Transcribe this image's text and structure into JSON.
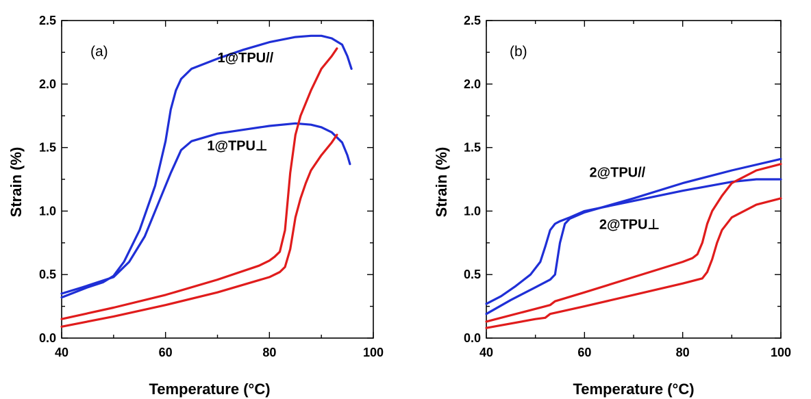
{
  "chart_data": [
    {
      "type": "line",
      "panel_label": "(a)",
      "xlabel": "Temperature (°C)",
      "ylabel": "Strain (%)",
      "xlim": [
        40,
        100
      ],
      "ylim": [
        0,
        2.5
      ],
      "x_ticks": [
        "40",
        "60",
        "80",
        "100"
      ],
      "y_ticks": [
        "0.0",
        "0.5",
        "1.0",
        "1.5",
        "2.0",
        "2.5"
      ],
      "grid": false,
      "annotations": [
        {
          "text": "1@TPU//",
          "x": 70,
          "y": 2.17
        },
        {
          "text": "1@TPU⊥",
          "x": 68,
          "y": 1.48
        }
      ],
      "series": [
        {
          "color": "#1f2fd6",
          "x": [
            40,
            45,
            48,
            50,
            52,
            55,
            58,
            60,
            61,
            62,
            63,
            65,
            70,
            75,
            80,
            85,
            88,
            90,
            92,
            94,
            95,
            95.8
          ],
          "y": [
            0.32,
            0.4,
            0.44,
            0.49,
            0.6,
            0.85,
            1.2,
            1.55,
            1.8,
            1.95,
            2.04,
            2.12,
            2.2,
            2.27,
            2.33,
            2.37,
            2.38,
            2.38,
            2.36,
            2.31,
            2.22,
            2.12
          ]
        },
        {
          "color": "#1f2fd6",
          "x": [
            40,
            44,
            47,
            50,
            53,
            56,
            57,
            59,
            61,
            63,
            65,
            70,
            75,
            80,
            85,
            88,
            90,
            92,
            94,
            95,
            95.5
          ],
          "y": [
            0.35,
            0.4,
            0.44,
            0.48,
            0.6,
            0.8,
            0.9,
            1.1,
            1.3,
            1.48,
            1.55,
            1.61,
            1.64,
            1.67,
            1.69,
            1.68,
            1.66,
            1.62,
            1.54,
            1.44,
            1.37
          ]
        },
        {
          "color": "#e01c1c",
          "x": [
            40,
            50,
            60,
            70,
            78,
            80,
            81,
            82,
            83,
            84,
            85,
            86,
            88,
            90,
            92,
            93
          ],
          "y": [
            0.15,
            0.24,
            0.34,
            0.46,
            0.57,
            0.61,
            0.64,
            0.68,
            0.85,
            1.3,
            1.6,
            1.75,
            1.95,
            2.12,
            2.22,
            2.28
          ]
        },
        {
          "color": "#e01c1c",
          "x": [
            40,
            50,
            60,
            70,
            80,
            82,
            83,
            84,
            85,
            86,
            87,
            88,
            90,
            92,
            93
          ],
          "y": [
            0.09,
            0.17,
            0.26,
            0.36,
            0.48,
            0.52,
            0.56,
            0.7,
            0.95,
            1.1,
            1.22,
            1.32,
            1.44,
            1.54,
            1.6
          ]
        }
      ]
    },
    {
      "type": "line",
      "panel_label": "(b)",
      "xlabel": "Temperature (°C)",
      "ylabel": "Strain (%)",
      "xlim": [
        40,
        100
      ],
      "ylim": [
        0,
        2.5
      ],
      "x_ticks": [
        "40",
        "60",
        "80",
        "100"
      ],
      "y_ticks": [
        "0.0",
        "0.5",
        "1.0",
        "1.5",
        "2.0",
        "2.5"
      ],
      "grid": false,
      "annotations": [
        {
          "text": "2@TPU//",
          "x": 61,
          "y": 1.27
        },
        {
          "text": "2@TPU⊥",
          "x": 63,
          "y": 0.86
        }
      ],
      "series": [
        {
          "color": "#1f2fd6",
          "x": [
            40,
            43,
            46,
            49,
            51,
            52,
            53,
            54,
            55,
            57,
            60,
            70,
            80,
            90,
            95,
            100
          ],
          "y": [
            0.27,
            0.33,
            0.41,
            0.5,
            0.6,
            0.72,
            0.85,
            0.9,
            0.92,
            0.95,
            1.0,
            1.08,
            1.16,
            1.23,
            1.25,
            1.25
          ]
        },
        {
          "color": "#1f2fd6",
          "x": [
            40,
            45,
            50,
            53,
            54,
            55,
            56,
            57,
            60,
            70,
            80,
            90,
            100
          ],
          "y": [
            0.19,
            0.3,
            0.4,
            0.46,
            0.5,
            0.75,
            0.9,
            0.94,
            0.99,
            1.1,
            1.22,
            1.32,
            1.41
          ]
        },
        {
          "color": "#e01c1c",
          "x": [
            40,
            50,
            53,
            54,
            60,
            70,
            80,
            82,
            83,
            84,
            85,
            86,
            88,
            90,
            95,
            100
          ],
          "y": [
            0.13,
            0.23,
            0.26,
            0.29,
            0.36,
            0.48,
            0.6,
            0.63,
            0.66,
            0.75,
            0.9,
            1.0,
            1.12,
            1.22,
            1.32,
            1.37
          ]
        },
        {
          "color": "#e01c1c",
          "x": [
            40,
            50,
            52,
            53,
            60,
            70,
            80,
            84,
            85,
            86,
            87,
            88,
            90,
            95,
            100
          ],
          "y": [
            0.08,
            0.15,
            0.16,
            0.19,
            0.25,
            0.34,
            0.43,
            0.47,
            0.52,
            0.62,
            0.75,
            0.85,
            0.95,
            1.05,
            1.1
          ]
        }
      ]
    }
  ]
}
